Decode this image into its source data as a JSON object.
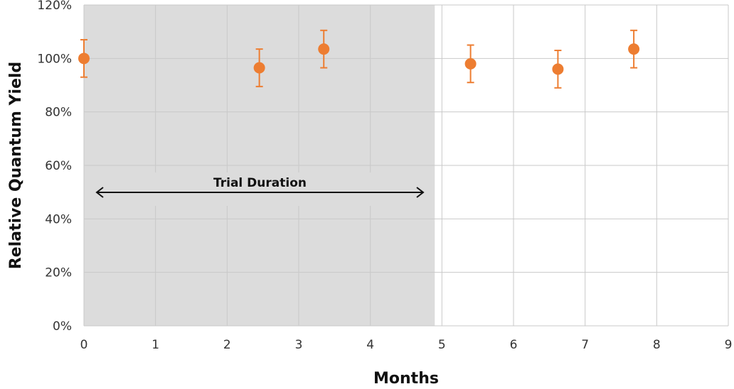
{
  "chart_data": {
    "type": "scatter",
    "title": "",
    "xlabel": "Months",
    "ylabel": "Relative Quantum Yield",
    "xlim": [
      0,
      9
    ],
    "ylim": [
      0,
      120
    ],
    "x_ticks": [
      0,
      1,
      2,
      3,
      4,
      5,
      6,
      7,
      8,
      9
    ],
    "x_tick_labels": [
      "0",
      "1",
      "2",
      "3",
      "4",
      "5",
      "6",
      "7",
      "8",
      "9"
    ],
    "y_ticks": [
      0,
      20,
      40,
      60,
      80,
      100,
      120
    ],
    "y_tick_labels": [
      "0%",
      "20%",
      "40%",
      "60%",
      "80%",
      "100%",
      "120%"
    ],
    "grid": true,
    "legend": "none",
    "points": [
      {
        "x": 0.0,
        "y": 100.0,
        "err": 7.0
      },
      {
        "x": 2.45,
        "y": 96.5,
        "err": 7.0
      },
      {
        "x": 3.35,
        "y": 103.5,
        "err": 7.0
      },
      {
        "x": 5.4,
        "y": 98.0,
        "err": 7.0
      },
      {
        "x": 6.62,
        "y": 96.0,
        "err": 7.0
      },
      {
        "x": 7.68,
        "y": 103.5,
        "err": 7.0
      }
    ],
    "shaded_region": {
      "x_start": 0,
      "x_end": 4.9,
      "label": "Trial Duration"
    },
    "colors": {
      "marker": "#ED7D31",
      "shade": "#DCDCDC",
      "grid": "#C9C9C9"
    }
  }
}
